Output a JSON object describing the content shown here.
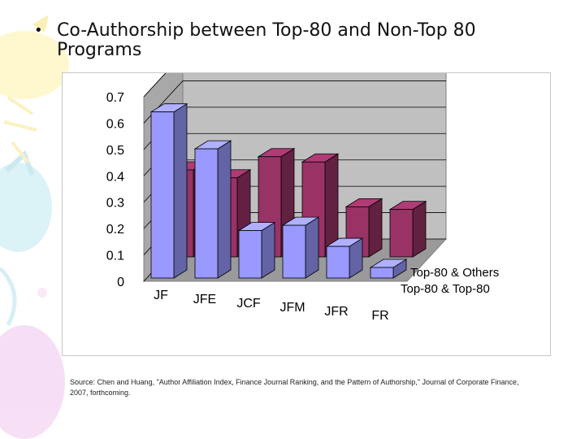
{
  "slide": {
    "bullet": "•",
    "title_line1": "Co-Authorship between Top-80 and Non-Top 80",
    "title_line2": "Programs",
    "source": "Source: Chen and Huang, \"Author Affiliation Index, Finance Journal Ranking, and the Pattern of Authorship,\" Journal of Corporate Finance, 2007, forthcoming."
  },
  "colors": {
    "front_series": "#9999ff",
    "back_series": "#993366",
    "wall": "#c0c0c0"
  },
  "chart_data": {
    "type": "bar",
    "categories": [
      "JF",
      "JFE",
      "JCF",
      "JFM",
      "JFR",
      "FR"
    ],
    "series": [
      {
        "name": "Top-80 & Top-80",
        "values": [
          0.63,
          0.49,
          0.18,
          0.2,
          0.12,
          0.04
        ]
      },
      {
        "name": "Top-80 & Others",
        "values": [
          0.33,
          0.3,
          0.38,
          0.36,
          0.19,
          0.18
        ]
      }
    ],
    "y_ticks": [
      "0",
      "0.1",
      "0.2",
      "0.3",
      "0.4",
      "0.5",
      "0.6",
      "0.7"
    ],
    "ylim": [
      0,
      0.7
    ],
    "grid": true,
    "legend": "depth-axis-right"
  }
}
